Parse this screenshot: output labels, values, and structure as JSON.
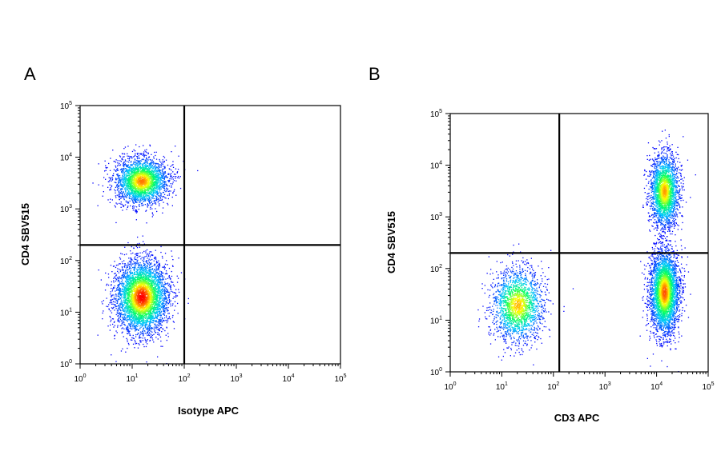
{
  "chart_data": [
    {
      "panel_label": "A",
      "type": "scatter",
      "plot_style": "flow cytometry pseudocolor density dot plot",
      "xlabel": "Isotype APC",
      "ylabel": "CD4 SBV515",
      "x_scale": "log",
      "y_scale": "log",
      "xlim": [
        1,
        100000
      ],
      "ylim": [
        1,
        100000
      ],
      "x_tick_labels": [
        "10^0",
        "10^1",
        "10^2",
        "10^3",
        "10^4",
        "10^5"
      ],
      "y_tick_labels": [
        "10^0",
        "10^1",
        "10^2",
        "10^3",
        "10^4",
        "10^5"
      ],
      "quadrant_gates": {
        "x": 100,
        "y": 200
      },
      "populations": [
        {
          "center": [
            15,
            3500
          ],
          "relative_density": 0.38
        },
        {
          "center": [
            15,
            20
          ],
          "relative_density": 0.62
        }
      ],
      "density_colormap": [
        "#0000ff",
        "#00c8ff",
        "#00ff64",
        "#ffff00",
        "#ff0000"
      ],
      "grid": false,
      "legend": "none"
    },
    {
      "panel_label": "B",
      "type": "scatter",
      "plot_style": "flow cytometry pseudocolor density dot plot",
      "xlabel": "CD3 APC",
      "ylabel": "CD4 SBV515",
      "x_scale": "log",
      "y_scale": "log",
      "xlim": [
        1,
        100000
      ],
      "ylim": [
        1,
        100000
      ],
      "x_tick_labels": [
        "10^0",
        "10^1",
        "10^2",
        "10^3",
        "10^4",
        "10^5"
      ],
      "y_tick_labels": [
        "10^0",
        "10^1",
        "10^2",
        "10^3",
        "10^4",
        "10^5"
      ],
      "quadrant_gates": {
        "x": 130,
        "y": 200
      },
      "populations": [
        {
          "center": [
            14000,
            3200
          ],
          "relative_density": 0.3
        },
        {
          "center": [
            14000,
            35
          ],
          "relative_density": 0.45
        },
        {
          "center": [
            20,
            20
          ],
          "relative_density": 0.25
        }
      ],
      "density_colormap": [
        "#0000ff",
        "#00c8ff",
        "#00ff64",
        "#ffff00",
        "#ff0000"
      ],
      "grid": false,
      "legend": "none"
    }
  ]
}
